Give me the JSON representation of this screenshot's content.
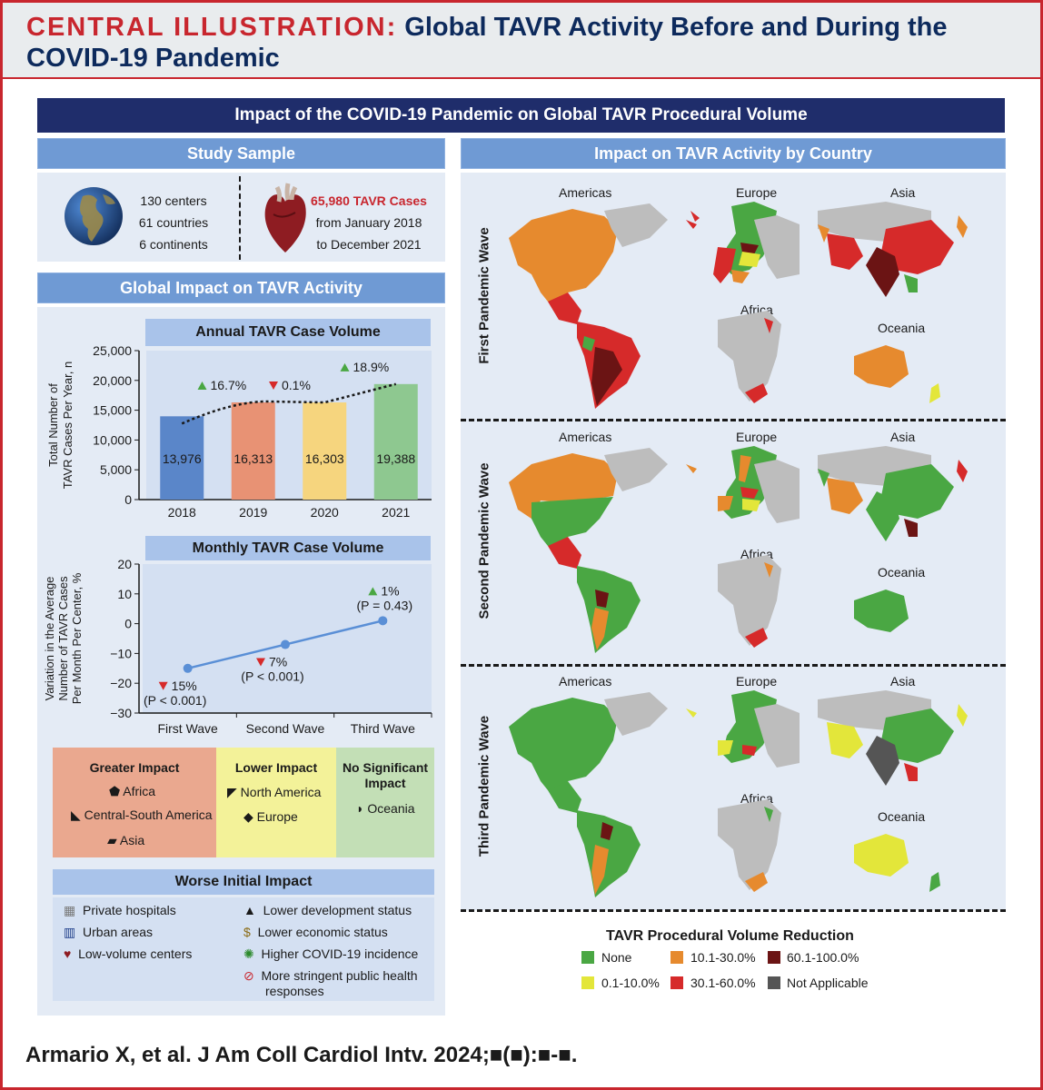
{
  "header": {
    "title_accent": "CENTRAL ILLUSTRATION:",
    "title_line1": "Global TAVR Activity Before and During the",
    "title_line2": "COVID-19 Pandemic"
  },
  "main_title": "Impact of the COVID-19 Pandemic on Global TAVR Procedural Volume",
  "study_sample": {
    "title": "Study Sample",
    "left": [
      "130 centers",
      "61 countries",
      "6 continents"
    ],
    "cases": "65,980 TAVR Cases",
    "period": [
      "from January 2018",
      "to December 2021"
    ]
  },
  "global_impact": {
    "title": "Global Impact on TAVR Activity"
  },
  "chart_data": [
    {
      "type": "bar",
      "title": "Annual TAVR Case Volume",
      "ylabel": "Total Number of TAVR Cases Per Year, n",
      "categories": [
        "2018",
        "2019",
        "2020",
        "2021"
      ],
      "values": [
        13976,
        16313,
        16303,
        19388
      ],
      "value_labels": [
        "13,976",
        "16,313",
        "16,303",
        "19,388"
      ],
      "colors": [
        "#5a86c9",
        "#e89274",
        "#f6d57e",
        "#8ec890"
      ],
      "ylim": [
        0,
        25000
      ],
      "yticks": [
        "0",
        "5,000",
        "10,000",
        "15,000",
        "20,000",
        "25,000"
      ],
      "changes": [
        {
          "label": "16.7%",
          "direction": "up"
        },
        {
          "label": "0.1%",
          "direction": "down"
        },
        {
          "label": "18.9%",
          "direction": "up"
        }
      ]
    },
    {
      "type": "line",
      "title": "Monthly TAVR Case Volume",
      "ylabel": "Variation in the Average Number of TAVR Cases Per Month Per Center, %",
      "categories": [
        "First Wave",
        "Second Wave",
        "Third Wave"
      ],
      "values": [
        -15,
        -7,
        1
      ],
      "ylim": [
        -30,
        20
      ],
      "yticks": [
        "−30",
        "−20",
        "−10",
        "0",
        "10",
        "20"
      ],
      "annotations": [
        {
          "label": "15%",
          "p": "(P < 0.001)",
          "direction": "down"
        },
        {
          "label": "7%",
          "p": "(P < 0.001)",
          "direction": "down"
        },
        {
          "label": "1%",
          "p": "(P = 0.43)",
          "direction": "up"
        }
      ]
    }
  ],
  "impact_groups": [
    {
      "title": "Greater Impact",
      "items": [
        "Africa",
        "Central-South America",
        "Asia"
      ],
      "color": "#eaa88f"
    },
    {
      "title": "Lower Impact",
      "items": [
        "North America",
        "Europe"
      ],
      "color": "#f3f299"
    },
    {
      "title_lines": [
        "No Significant",
        "Impact"
      ],
      "items": [
        "Oceania"
      ],
      "color": "#c3dfb6"
    }
  ],
  "worse_initial": {
    "title": "Worse Initial Impact",
    "left": [
      "Private hospitals",
      "Urban areas",
      "Low-volume centers"
    ],
    "right": [
      "Lower development status",
      "Lower economic status",
      "Higher COVID-19 incidence",
      "More stringent public health",
      "responses"
    ]
  },
  "maps": {
    "title": "Impact on TAVR Activity by Country",
    "regions": [
      "Americas",
      "Europe",
      "Asia",
      "Africa",
      "Oceania"
    ],
    "waves": [
      "First Pandemic Wave",
      "Second Pandemic Wave",
      "Third Pandemic Wave"
    ]
  },
  "legend": {
    "title": "TAVR Procedural Volume Reduction",
    "items": [
      {
        "label": "None",
        "color": "#4aa743"
      },
      {
        "label": "0.1-10.0%",
        "color": "#e3e63a"
      },
      {
        "label": "10.1-30.0%",
        "color": "#e68a2e"
      },
      {
        "label": "30.1-60.0%",
        "color": "#d62a2a"
      },
      {
        "label": "60.1-100.0%",
        "color": "#6b1414"
      },
      {
        "label": "Not Applicable",
        "color": "#555555"
      }
    ]
  },
  "citation": "Armario X, et al. J Am Coll Cardiol Intv. 2024;■(■):■-■."
}
